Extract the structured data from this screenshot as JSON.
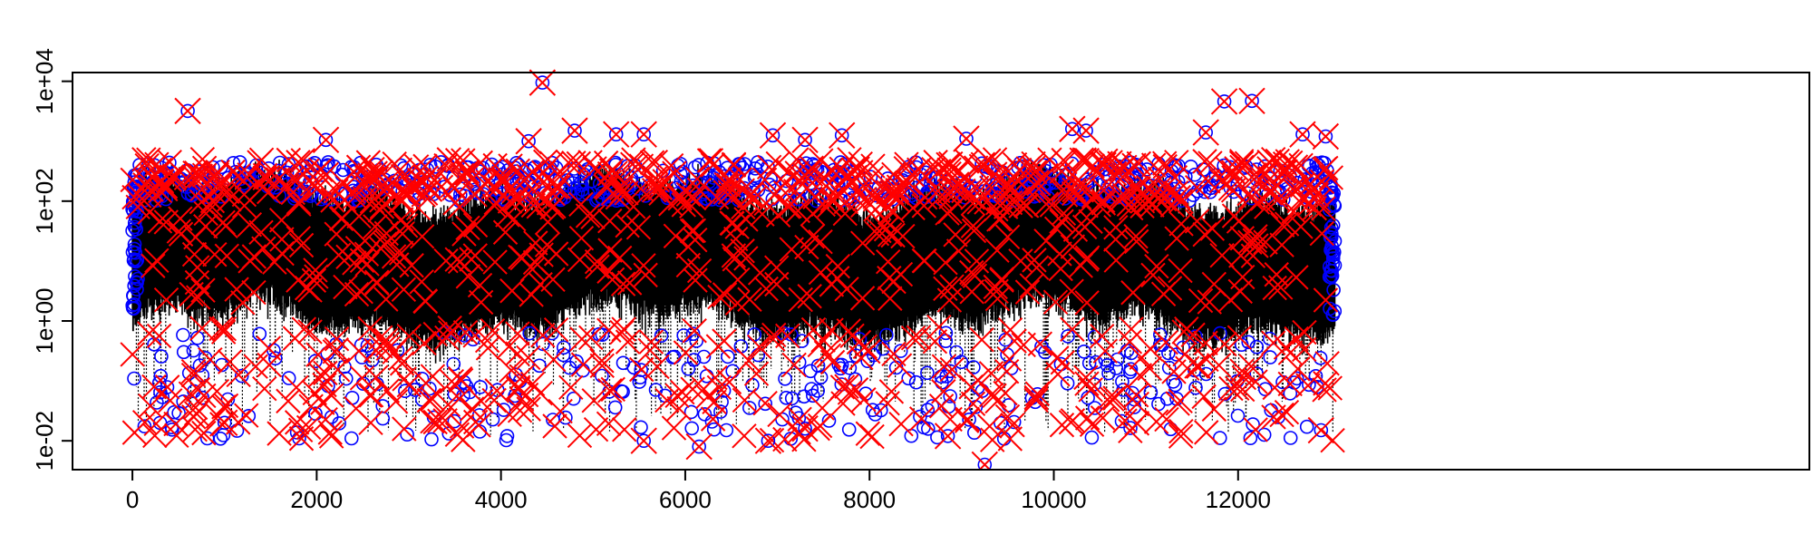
{
  "chart_data": {
    "type": "scatter",
    "title": "",
    "xlabel": "",
    "ylabel": "",
    "x_axis": {
      "range": [
        -650,
        18200
      ],
      "ticks": [
        0,
        2000,
        4000,
        6000,
        8000,
        10000,
        12000
      ],
      "tick_labels": [
        "0",
        "2000",
        "4000",
        "6000",
        "8000",
        "10000",
        "12000"
      ]
    },
    "y_axis": {
      "scale": "log10",
      "range": [
        0.0033,
        14000
      ],
      "ticks": [
        0.01,
        1,
        100,
        10000
      ],
      "tick_labels": [
        "1e-02",
        "1e+00",
        "1e+02",
        "1e+04"
      ]
    },
    "grid": false,
    "legend": "none",
    "series_styles": {
      "dense_trace": {
        "color": "#000000",
        "marker": "dotted-line",
        "n_points": 13050,
        "x_range": [
          0,
          13050
        ],
        "typical_range": [
          1.5,
          150
        ],
        "extreme_range": [
          0.01,
          1300
        ]
      },
      "circles": {
        "color": "#0000ff",
        "marker": "open-circle"
      },
      "crosses": {
        "color": "#ff0000",
        "marker": "x"
      }
    },
    "highlighted_points": [
      {
        "x": 4450,
        "y": 9500
      },
      {
        "x": 600,
        "y": 3200
      },
      {
        "x": 11850,
        "y": 4600
      },
      {
        "x": 12150,
        "y": 4700
      },
      {
        "x": 4800,
        "y": 1500
      },
      {
        "x": 5250,
        "y": 1300
      },
      {
        "x": 5550,
        "y": 1300
      },
      {
        "x": 10200,
        "y": 1600
      },
      {
        "x": 10350,
        "y": 1500
      },
      {
        "x": 11650,
        "y": 1400
      },
      {
        "x": 12700,
        "y": 1300
      },
      {
        "x": 12950,
        "y": 1200
      },
      {
        "x": 9050,
        "y": 1100
      },
      {
        "x": 2100,
        "y": 1050
      },
      {
        "x": 6950,
        "y": 1250
      },
      {
        "x": 7300,
        "y": 1050
      },
      {
        "x": 7700,
        "y": 1250
      },
      {
        "x": 4300,
        "y": 1000
      },
      {
        "x": 5550,
        "y": 0.01
      },
      {
        "x": 1000,
        "y": 0.02
      },
      {
        "x": 9250,
        "y": 0.004
      },
      {
        "x": 6150,
        "y": 0.008
      },
      {
        "x": 6900,
        "y": 0.01
      },
      {
        "x": 12900,
        "y": 0.015
      },
      {
        "x": 8850,
        "y": 0.012
      },
      {
        "x": 7300,
        "y": 0.016
      }
    ]
  }
}
